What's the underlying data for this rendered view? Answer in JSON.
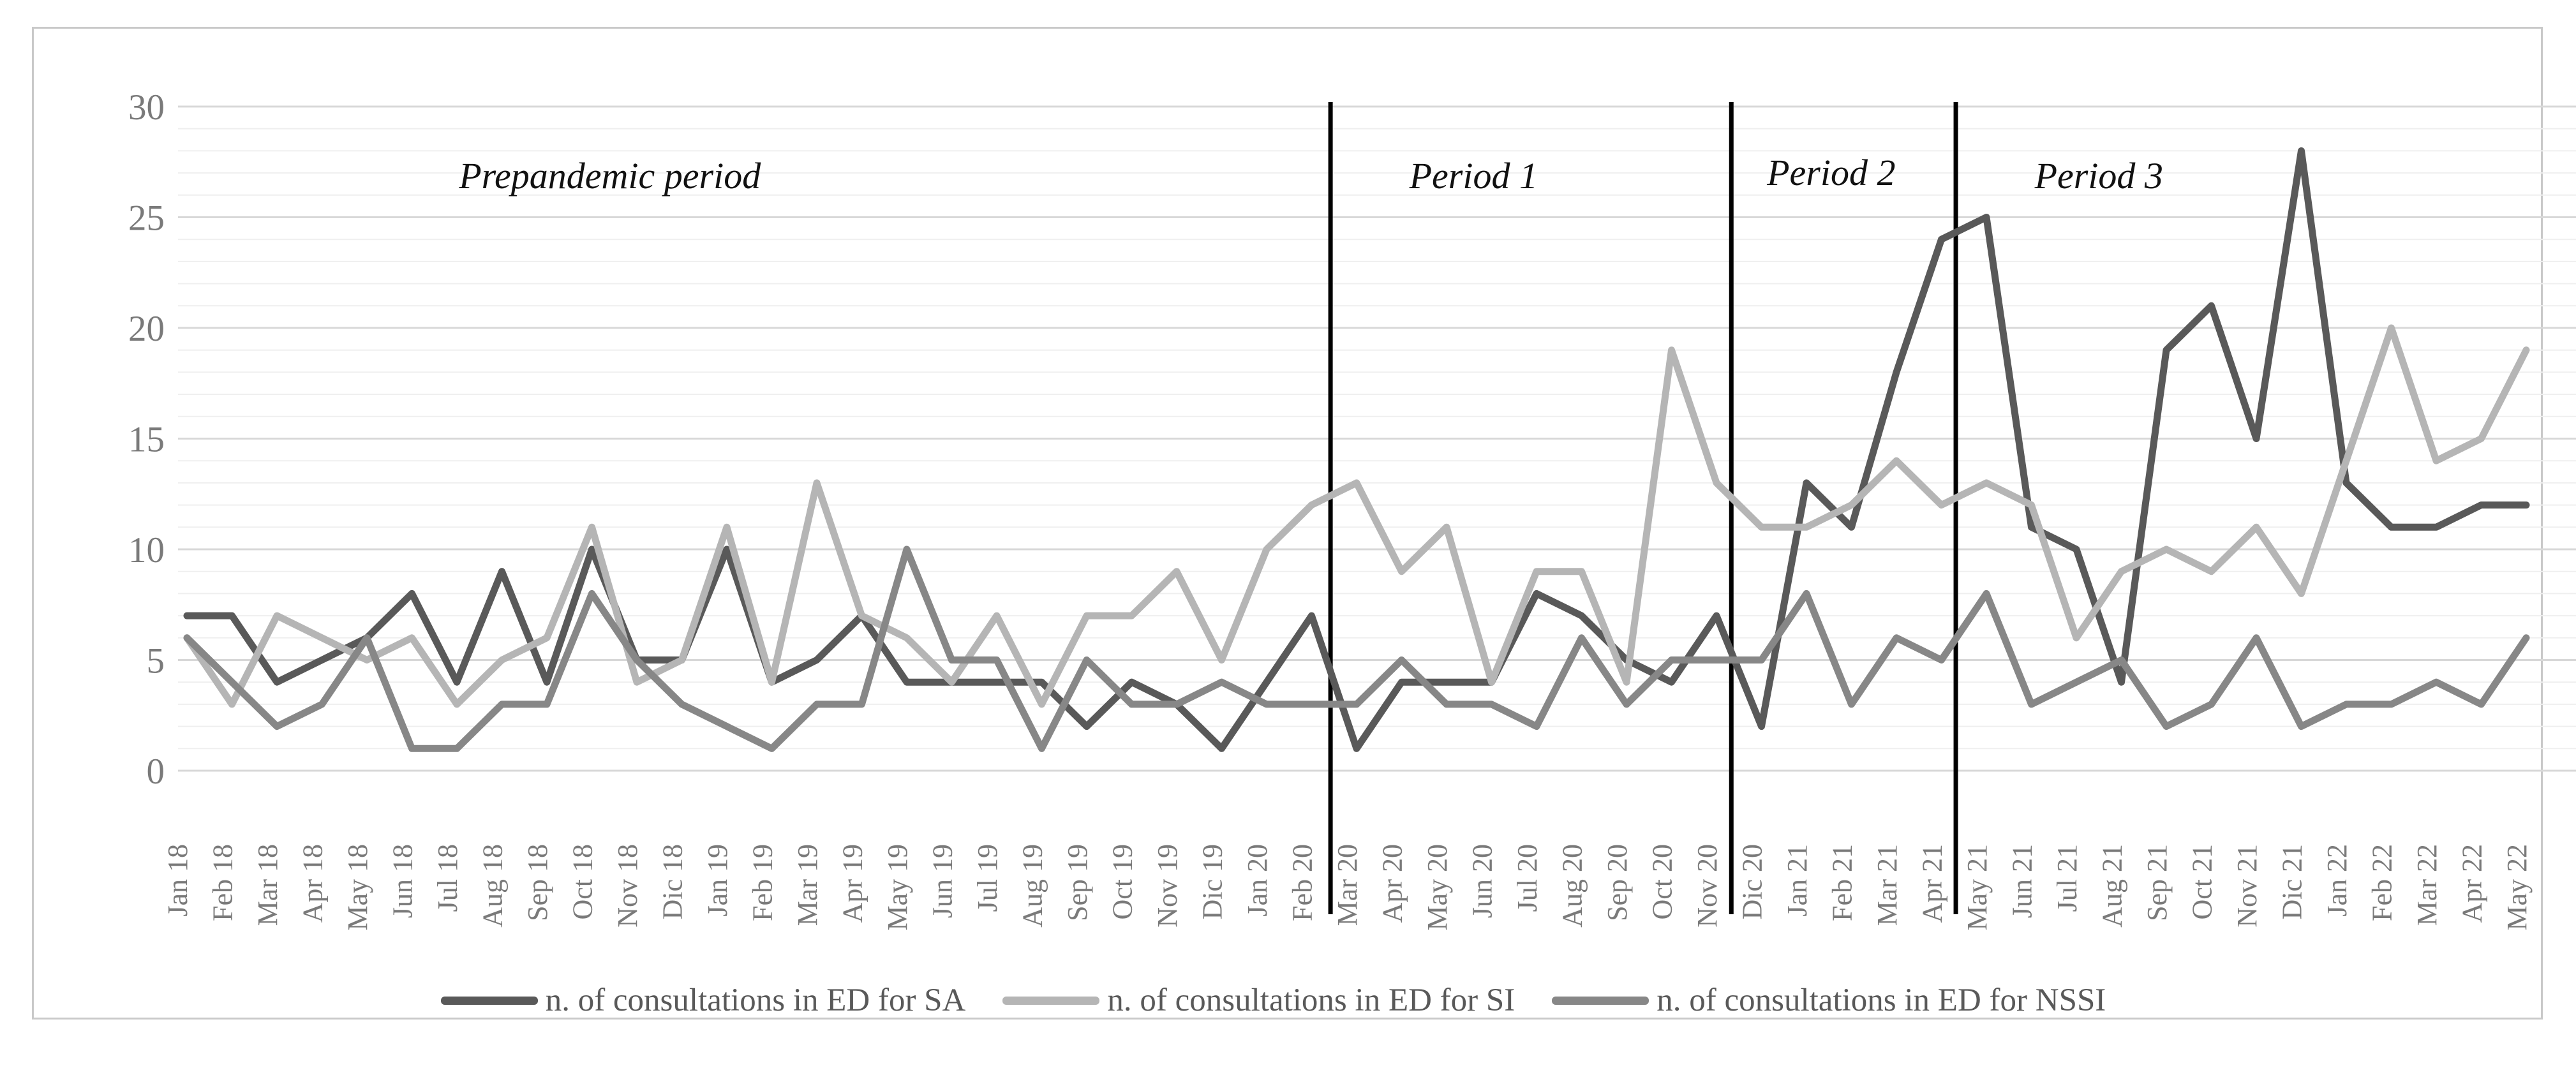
{
  "colors": {
    "sa_line": "#595959",
    "si_line": "#b5b5b5",
    "nssi_line": "#878787",
    "axis_text": "#7a7a7a",
    "grid_minor": "#efefef",
    "grid_major": "#d8d8d8",
    "divider": "#000000",
    "figure_border": "#c9c9c9",
    "period_label_text": "#111111",
    "legend_text": "#595959"
  },
  "chart_data": {
    "type": "line",
    "title": "",
    "xlabel": "",
    "ylabel": "",
    "ylim": [
      0,
      30
    ],
    "ytick_step": 5,
    "minor_unit": 1,
    "grid": "horizontal-minor-and-major",
    "legend_position": "bottom",
    "yticks": [
      0,
      5,
      10,
      15,
      20,
      25,
      30
    ],
    "categories": [
      "Jan 18",
      "Feb 18",
      "Mar 18",
      "Apr 18",
      "May 18",
      "Jun 18",
      "Jul 18",
      "Aug 18",
      "Sep 18",
      "Oct 18",
      "Nov 18",
      "Dic 18",
      "Jan 19",
      "Feb 19",
      "Mar 19",
      "Apr 19",
      "May 19",
      "Jun 19",
      "Jul 19",
      "Aug 19",
      "Sep 19",
      "Oct 19",
      "Nov 19",
      "Dic 19",
      "Jan 20",
      "Feb 20",
      "Mar 20",
      "Apr 20",
      "May 20",
      "Jun 20",
      "Jul 20",
      "Aug 20",
      "Sep 20",
      "Oct 20",
      "Nov 20",
      "Dic 20",
      "Jan 21",
      "Feb 21",
      "Mar 21",
      "Apr 21",
      "May 21",
      "Jun 21",
      "Jul 21",
      "Aug 21",
      "Sep 21",
      "Oct 21",
      "Nov 21",
      "Dic 21",
      "Jan 22",
      "Feb 22",
      "Mar 22",
      "Apr 22",
      "May 22"
    ],
    "series": [
      {
        "key": "SA",
        "label": "n. of consultations in ED for SA",
        "color": "#595959",
        "values": [
          7,
          7,
          4,
          5,
          6,
          8,
          4,
          9,
          4,
          10,
          5,
          5,
          10,
          4,
          5,
          7,
          4,
          4,
          4,
          4,
          2,
          4,
          3,
          1,
          4,
          7,
          1,
          4,
          4,
          4,
          8,
          7,
          5,
          4,
          7,
          2,
          13,
          11,
          18,
          24,
          25,
          11,
          10,
          4,
          19,
          21,
          15,
          28,
          13,
          11,
          11,
          12,
          12
        ]
      },
      {
        "key": "SI",
        "label": "n. of consultations in ED for SI",
        "color": "#b5b5b5",
        "values": [
          6,
          3,
          7,
          6,
          5,
          6,
          3,
          5,
          6,
          11,
          4,
          5,
          11,
          4,
          13,
          7,
          6,
          4,
          7,
          3,
          7,
          7,
          9,
          5,
          10,
          12,
          13,
          9,
          11,
          4,
          9,
          9,
          4,
          19,
          13,
          11,
          11,
          12,
          14,
          12,
          13,
          12,
          6,
          9,
          10,
          9,
          11,
          8,
          14,
          20,
          14,
          15,
          19
        ]
      },
      {
        "key": "NSSI",
        "label": "n. of consultations in ED for NSSI",
        "color": "#878787",
        "values": [
          6,
          4,
          2,
          3,
          6,
          1,
          1,
          3,
          3,
          8,
          5,
          3,
          2,
          1,
          3,
          3,
          10,
          5,
          5,
          1,
          5,
          3,
          3,
          4,
          3,
          3,
          3,
          5,
          3,
          3,
          2,
          6,
          3,
          5,
          5,
          5,
          8,
          3,
          6,
          5,
          8,
          3,
          4,
          5,
          2,
          3,
          6,
          2,
          3,
          3,
          4,
          3,
          6
        ]
      }
    ],
    "annotations": {
      "period_labels": [
        {
          "text": "Prepandemic period",
          "k": 9.4,
          "y": 250
        },
        {
          "text": "Period 1",
          "k": 28.6,
          "y": 250
        },
        {
          "text": "Period 2",
          "k": 36.55,
          "y": 245
        },
        {
          "text": "Period 3",
          "k": 42.5,
          "y": 250
        }
      ],
      "dividers_k": [
        25.42,
        34.33,
        39.32
      ]
    }
  }
}
